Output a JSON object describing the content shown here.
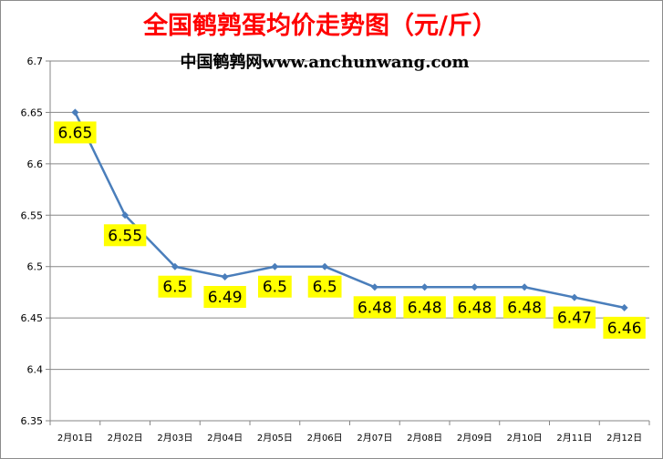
{
  "chart_data": {
    "type": "line",
    "title": "全国鹌鹑蛋均价走势图（元/斤）",
    "subtitle": "中国鹌鹑网www.anchunwang.com",
    "xlabel": "",
    "ylabel": "",
    "categories": [
      "2月01日",
      "2月02日",
      "2月03日",
      "2月04日",
      "2月05日",
      "2月06日",
      "2月07日",
      "2月08日",
      "2月09日",
      "2月10日",
      "2月11日",
      "2月12日"
    ],
    "series": [
      {
        "values": [
          6.65,
          6.55,
          6.5,
          6.49,
          6.5,
          6.5,
          6.48,
          6.48,
          6.48,
          6.48,
          6.47,
          6.46
        ]
      }
    ],
    "data_labels": [
      "6.65",
      "6.55",
      "6.5",
      "6.49",
      "6.5",
      "6.5",
      "6.48",
      "6.48",
      "6.48",
      "6.48",
      "6.47",
      "6.46"
    ],
    "yticks": [
      "6.35",
      "6.4",
      "6.45",
      "6.5",
      "6.55",
      "6.6",
      "6.65",
      "6.7"
    ],
    "ylim": [
      6.35,
      6.7
    ],
    "grid": true,
    "legend": "none",
    "colors": {
      "title": "#ff0000",
      "subtitle": "#000000",
      "line": "#4a7ebb",
      "label_bg": "#ffff00",
      "grid": "#868686",
      "axis": "#868686"
    }
  }
}
